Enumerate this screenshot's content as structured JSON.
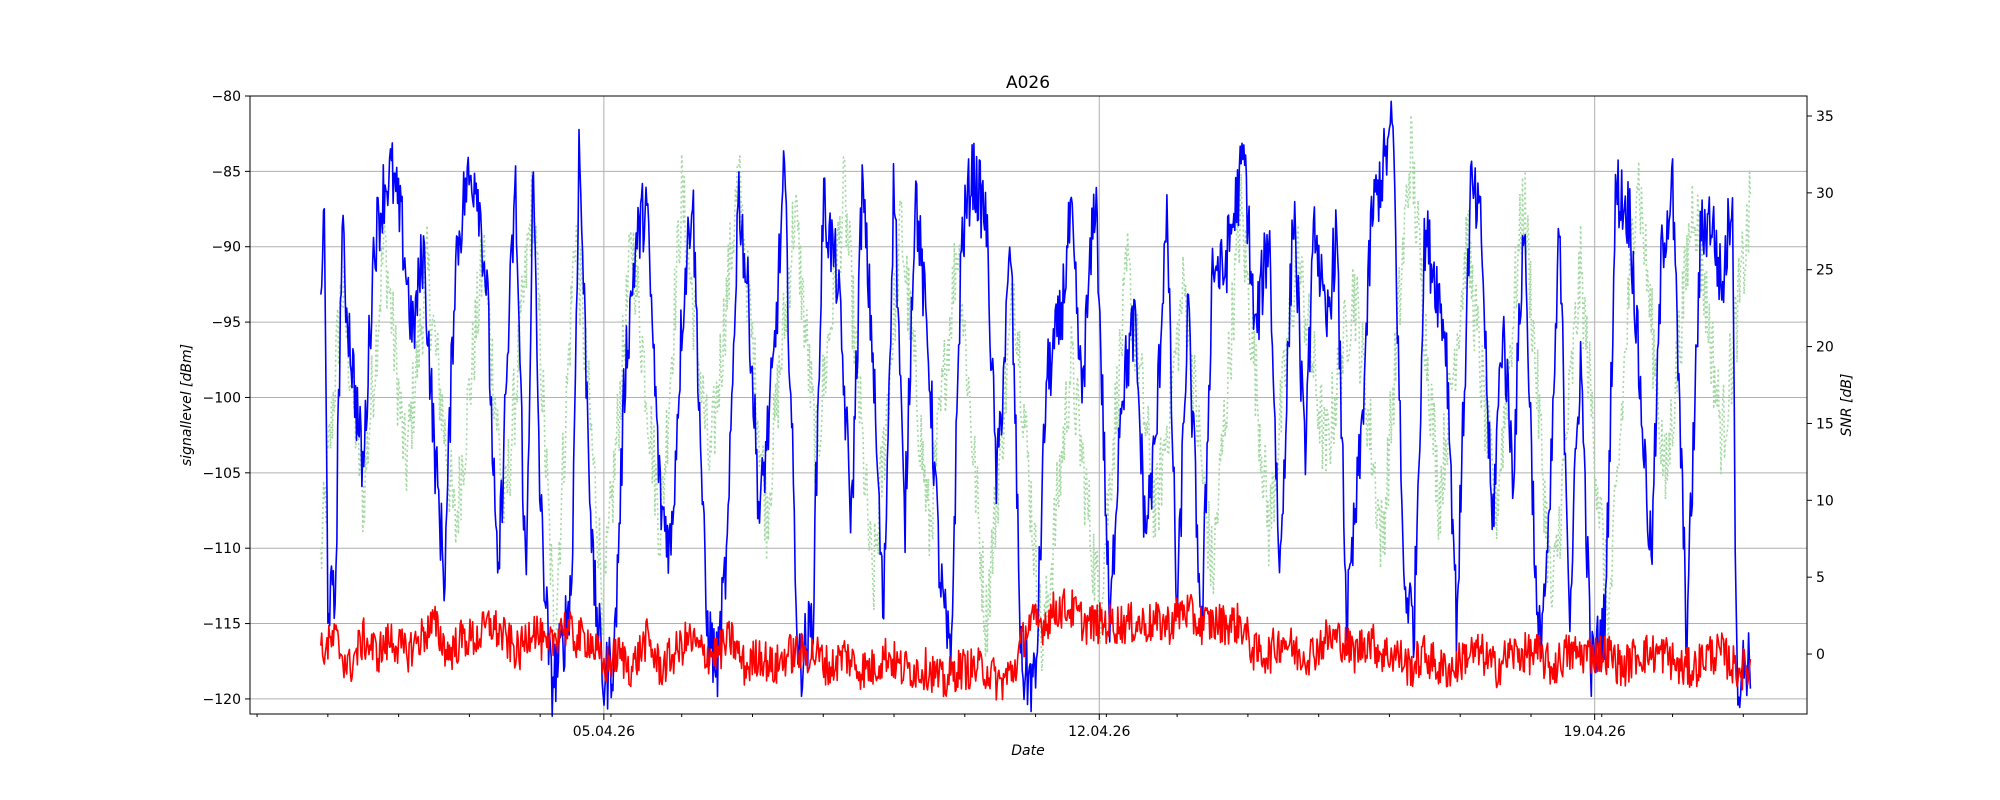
{
  "chart_data": {
    "type": "line",
    "title": "A026",
    "xlabel": "Date",
    "ylabel": "signallevel [dBm]",
    "y2label": "SNR [dB]",
    "x_tick_labels": [
      "05.04.26",
      "12.04.26",
      "19.04.26"
    ],
    "x_tick_days": [
      5,
      12,
      19
    ],
    "xlim_days": [
      0.0,
      22.0
    ],
    "data_range_days": [
      1.0,
      21.2
    ],
    "ylim": [
      -121,
      -80
    ],
    "y_ticks": [
      -120,
      -115,
      -110,
      -105,
      -100,
      -95,
      -90,
      -85,
      -80
    ],
    "y2lim": [
      -3.9,
      36.3
    ],
    "y2_ticks": [
      0,
      5,
      10,
      15,
      20,
      25,
      30,
      35
    ],
    "grid": true,
    "series": [
      {
        "axis": "left",
        "style": "solid",
        "color": "#0000ff",
        "x_days": [
          1.0,
          1.05,
          1.1,
          1.2,
          1.3,
          1.35,
          1.45,
          1.6,
          1.75,
          1.9,
          2.0,
          2.15,
          2.3,
          2.45,
          2.6,
          2.75,
          2.9,
          3.05,
          3.2,
          3.35,
          3.5,
          3.65,
          3.75,
          3.9,
          4.0,
          4.1,
          4.25,
          4.4,
          4.55,
          4.65,
          4.75,
          4.85,
          5.0,
          5.15,
          5.3,
          5.45,
          5.6,
          5.8,
          5.95,
          6.1,
          6.25,
          6.45,
          6.6,
          6.75,
          6.9,
          7.05,
          7.2,
          7.4,
          7.55,
          7.75,
          7.95,
          8.1,
          8.3,
          8.5,
          8.65,
          8.8,
          8.95,
          9.1,
          9.25,
          9.4,
          9.6,
          9.75,
          9.9,
          10.05,
          10.2,
          10.4,
          10.55,
          10.75,
          10.9,
          11.1,
          11.25,
          11.45,
          11.6,
          11.75,
          11.95,
          12.15,
          12.3,
          12.5,
          12.65,
          12.8,
          12.95,
          13.1,
          13.25,
          13.45,
          13.6,
          13.75,
          13.9,
          14.05,
          14.2,
          14.4,
          14.55,
          14.75,
          14.9,
          15.05,
          15.2,
          15.35,
          15.5,
          15.7,
          15.85,
          16.0,
          16.15,
          16.3,
          16.45,
          16.6,
          16.75,
          16.9,
          17.05,
          17.25,
          17.4,
          17.55,
          17.7,
          17.85,
          18.0,
          18.2,
          18.35,
          18.5,
          18.65,
          18.8,
          18.95,
          19.15,
          19.3,
          19.5,
          19.65,
          19.8,
          19.95,
          20.1,
          20.3,
          20.5,
          20.65,
          20.8,
          20.95,
          21.0,
          21.05,
          21.1,
          21.2
        ],
        "values": [
          -93,
          -88,
          -113,
          -114,
          -89,
          -93,
          -98,
          -105,
          -90,
          -86,
          -85,
          -89,
          -96,
          -90,
          -103,
          -112,
          -91,
          -86,
          -85,
          -93,
          -113,
          -96,
          -86,
          -113,
          -85,
          -107,
          -119,
          -117,
          -112,
          -83,
          -98,
          -112,
          -119,
          -117,
          -98,
          -90,
          -87,
          -107,
          -110,
          -95,
          -86,
          -115,
          -118,
          -110,
          -86,
          -94,
          -108,
          -98,
          -85,
          -118,
          -115,
          -87,
          -92,
          -108,
          -86,
          -97,
          -115,
          -85,
          -109,
          -86,
          -98,
          -112,
          -118,
          -90,
          -85,
          -88,
          -106,
          -90,
          -118,
          -119,
          -99,
          -95,
          -88,
          -100,
          -86,
          -116,
          -100,
          -95,
          -109,
          -103,
          -87,
          -115,
          -94,
          -116,
          -91,
          -92,
          -88,
          -84,
          -96,
          -89,
          -112,
          -87,
          -104,
          -88,
          -96,
          -89,
          -115,
          -103,
          -88,
          -85,
          -82,
          -112,
          -115,
          -89,
          -92,
          -96,
          -115,
          -86,
          -89,
          -109,
          -95,
          -105,
          -88,
          -117,
          -110,
          -89,
          -114,
          -97,
          -118,
          -115,
          -86,
          -88,
          -100,
          -111,
          -90,
          -86,
          -116,
          -89,
          -88,
          -93,
          -86,
          -117,
          -119,
          -118,
          -117
        ],
        "noise": 2.5
      },
      {
        "axis": "right",
        "style": "dotted",
        "color": "#a0d8a0",
        "x_days": [
          1.0,
          1.3,
          1.6,
          1.9,
          2.2,
          2.5,
          2.9,
          3.3,
          3.6,
          4.0,
          4.3,
          4.6,
          5.0,
          5.4,
          5.8,
          6.1,
          6.5,
          6.9,
          7.3,
          7.7,
          8.0,
          8.4,
          8.8,
          9.2,
          9.6,
          10.0,
          10.4,
          10.8,
          11.2,
          11.6,
          12.0,
          12.4,
          12.8,
          13.2,
          13.6,
          14.0,
          14.4,
          14.8,
          15.2,
          15.6,
          16.0,
          16.4,
          16.8,
          17.2,
          17.6,
          18.0,
          18.4,
          18.8,
          19.2,
          19.6,
          20.0,
          20.4,
          20.8,
          21.2
        ],
        "values": [
          6,
          24,
          10,
          27,
          12,
          25,
          8,
          26,
          9,
          30,
          1,
          28,
          3,
          27,
          8,
          30,
          12,
          31,
          9,
          29,
          13,
          30,
          4,
          28,
          8,
          27,
          2,
          24,
          0,
          19,
          3,
          25,
          9,
          24,
          5,
          29,
          8,
          26,
          13,
          24,
          7,
          33,
          10,
          27,
          9,
          30,
          3,
          25,
          2,
          32,
          11,
          30,
          14,
          29
        ],
        "noise": 3.0
      },
      {
        "axis": "left",
        "style": "solid",
        "color": "#ff0000",
        "x_days": [
          1.0,
          1.2,
          1.4,
          1.6,
          1.8,
          2.0,
          2.2,
          2.4,
          2.6,
          2.8,
          3.0,
          3.2,
          3.4,
          3.6,
          3.8,
          4.0,
          4.2,
          4.4,
          4.6,
          4.8,
          5.0,
          5.2,
          5.4,
          5.6,
          5.8,
          6.0,
          6.2,
          6.4,
          6.6,
          6.8,
          7.0,
          7.2,
          7.4,
          7.6,
          7.8,
          8.0,
          8.2,
          8.4,
          8.6,
          8.8,
          9.0,
          9.2,
          9.4,
          9.6,
          9.8,
          10.0,
          10.2,
          10.4,
          10.6,
          10.8,
          11.0,
          11.2,
          11.4,
          11.6,
          11.8,
          12.0,
          12.2,
          12.4,
          12.6,
          12.8,
          13.0,
          13.2,
          13.4,
          13.6,
          13.8,
          14.0,
          14.2,
          14.4,
          14.6,
          14.8,
          15.0,
          15.2,
          15.4,
          15.6,
          15.8,
          16.0,
          16.2,
          16.4,
          16.6,
          16.8,
          17.0,
          17.2,
          17.4,
          17.6,
          17.8,
          18.0,
          18.2,
          18.4,
          18.6,
          18.8,
          19.0,
          19.2,
          19.4,
          19.6,
          19.8,
          20.0,
          20.2,
          20.4,
          20.6,
          20.8,
          21.0,
          21.2
        ],
        "values": [
          -117,
          -116,
          -118,
          -116,
          -117,
          -116,
          -117,
          -116,
          -115,
          -117,
          -116,
          -116,
          -115,
          -116,
          -117,
          -115,
          -117,
          -115,
          -116,
          -116,
          -118,
          -117,
          -118,
          -116,
          -118,
          -117,
          -116,
          -117,
          -117,
          -116,
          -118,
          -117,
          -118,
          -117,
          -117,
          -117,
          -118,
          -117,
          -118,
          -118,
          -117,
          -118,
          -118,
          -118,
          -119,
          -118,
          -118,
          -118,
          -119,
          -118,
          -115,
          -115,
          -114,
          -114,
          -115,
          -115,
          -115,
          -115,
          -115,
          -115,
          -115,
          -114,
          -115,
          -115,
          -115,
          -115,
          -117,
          -117,
          -116,
          -117,
          -117,
          -116,
          -116,
          -117,
          -116,
          -117,
          -117,
          -118,
          -117,
          -118,
          -118,
          -117,
          -117,
          -118,
          -117,
          -117,
          -117,
          -118,
          -117,
          -117,
          -117,
          -117,
          -118,
          -117,
          -117,
          -117,
          -118,
          -118,
          -117,
          -117,
          -118,
          -118
        ],
        "noise": 1.4
      }
    ]
  }
}
